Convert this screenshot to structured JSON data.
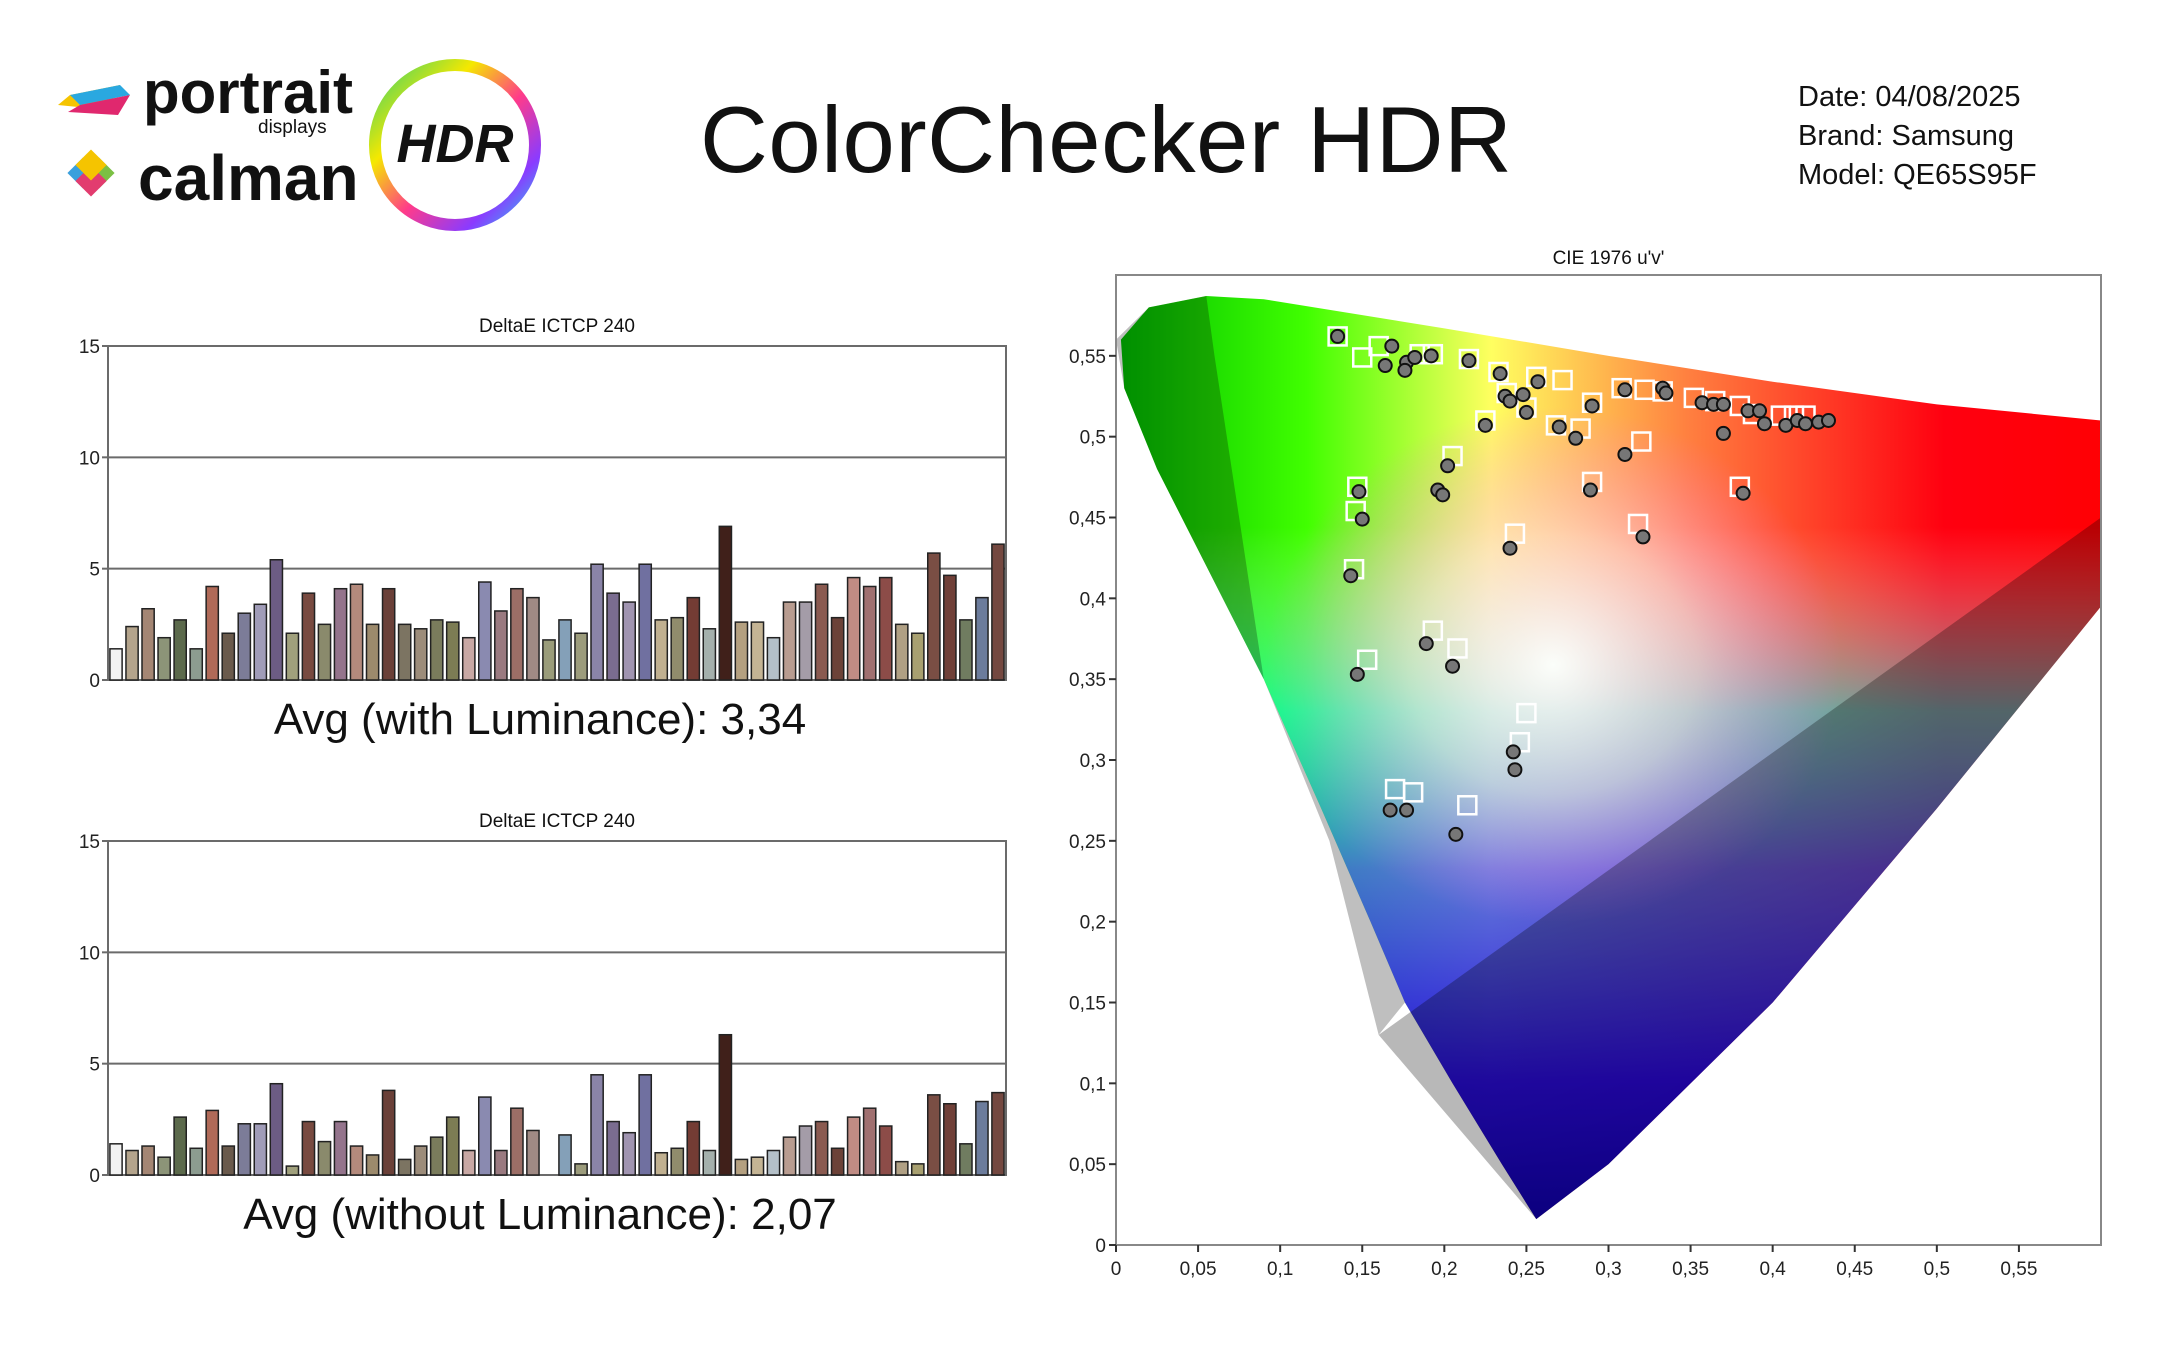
{
  "brand_logo": {
    "line1": "portrait",
    "line1_sub": "displays",
    "line2": "calman",
    "badge": "HDR"
  },
  "title": "ColorChecker HDR",
  "meta": {
    "date": "Date: 04/08/2025",
    "brand": "Brand: Samsung",
    "model": "Model: QE65S95F"
  },
  "avg_with": "Avg (with Luminance): 3,34",
  "avg_without": "Avg (without Luminance): 2,07",
  "chart_data": [
    {
      "type": "bar",
      "title": "DeltaE ICTCP 240",
      "ylim": [
        0,
        15
      ],
      "yticks": [
        "0",
        "5",
        "10",
        "15"
      ],
      "grid": true,
      "values": [
        1.4,
        2.4,
        3.2,
        1.9,
        2.7,
        1.4,
        4.2,
        2.1,
        3.0,
        3.4,
        5.4,
        2.1,
        3.9,
        2.5,
        4.1,
        4.3,
        2.5,
        4.1,
        2.5,
        2.3,
        2.7,
        2.6,
        1.9,
        4.4,
        3.1,
        4.1,
        3.7,
        1.8,
        2.7,
        2.1,
        5.2,
        3.9,
        3.5,
        5.2,
        2.7,
        2.8,
        3.7,
        2.3,
        6.9,
        2.6,
        2.6,
        1.9,
        3.5,
        3.5,
        4.3,
        2.8,
        4.6,
        4.2,
        4.6,
        2.5,
        2.1,
        5.7,
        4.7,
        2.7,
        3.7,
        6.1
      ],
      "bar_colors": [
        "#f2f2f2",
        "#b4a48c",
        "#a48674",
        "#8c9478",
        "#5c6a4c",
        "#8c9c90",
        "#b06a58",
        "#6a5a4c",
        "#7c7c98",
        "#a09cb8",
        "#6c5c84",
        "#a0a07c",
        "#784a40",
        "#8a8a6c",
        "#94748c",
        "#b48a7c",
        "#9c8a6c",
        "#6a4038",
        "#7c7462",
        "#9c8c7a",
        "#7a7c5c",
        "#7c7c54",
        "#c8a8a4",
        "#8a8ab0",
        "#9a7a80",
        "#9c6e66",
        "#a08a84",
        "#9a9c7a",
        "#84a0b8",
        "#9c9c7c",
        "#8a84a8",
        "#7a6c90",
        "#a094b0",
        "#7070a0",
        "#c0b090",
        "#908c6c",
        "#743c34",
        "#a4b0ac",
        "#40201a",
        "#b4a080",
        "#c4b494",
        "#b4c0c8",
        "#b89c90",
        "#a49ca8",
        "#8a5a50",
        "#6c4238",
        "#c08c84",
        "#a07070",
        "#8c4c48",
        "#b0a084",
        "#a8a070",
        "#7a4e44",
        "#704038",
        "#707c60",
        "#6c7c9c",
        "#744840"
      ]
    },
    {
      "type": "bar",
      "title": "DeltaE ICTCP 240",
      "ylim": [
        0,
        15
      ],
      "yticks": [
        "0",
        "5",
        "10",
        "15"
      ],
      "grid": true,
      "values": [
        1.4,
        1.1,
        1.3,
        0.8,
        2.6,
        1.2,
        2.9,
        1.3,
        2.3,
        2.3,
        4.1,
        0.4,
        2.4,
        1.5,
        2.4,
        1.3,
        0.9,
        3.8,
        0.7,
        1.3,
        1.7,
        2.6,
        1.1,
        3.5,
        1.1,
        3.0,
        2.0,
        0.0,
        1.8,
        0.5,
        4.5,
        2.4,
        1.9,
        4.5,
        1.0,
        1.2,
        2.4,
        1.1,
        6.3,
        0.7,
        0.8,
        1.1,
        1.7,
        2.2,
        2.4,
        1.2,
        2.6,
        3.0,
        2.2,
        0.6,
        0.5,
        3.6,
        3.2,
        1.4,
        3.3,
        3.7
      ],
      "bar_colors": [
        "#f2f2f2",
        "#b4a48c",
        "#a48674",
        "#8c9478",
        "#5c6a4c",
        "#8c9c90",
        "#b06a58",
        "#6a5a4c",
        "#7c7c98",
        "#a09cb8",
        "#6c5c84",
        "#a0a07c",
        "#784a40",
        "#8a8a6c",
        "#94748c",
        "#b48a7c",
        "#9c8a6c",
        "#6a4038",
        "#7c7462",
        "#9c8c7a",
        "#7a7c5c",
        "#7c7c54",
        "#c8a8a4",
        "#8a8ab0",
        "#9a7a80",
        "#9c6e66",
        "#a08a84",
        "#9a9c7a",
        "#84a0b8",
        "#9c9c7c",
        "#8a84a8",
        "#7a6c90",
        "#a094b0",
        "#7070a0",
        "#c0b090",
        "#908c6c",
        "#743c34",
        "#a4b0ac",
        "#40201a",
        "#b4a080",
        "#c4b494",
        "#b4c0c8",
        "#b89c90",
        "#a49ca8",
        "#8a5a50",
        "#6c4238",
        "#c08c84",
        "#a07070",
        "#8c4c48",
        "#b0a084",
        "#a8a070",
        "#7a4e44",
        "#704038",
        "#707c60",
        "#6c7c9c",
        "#744840"
      ]
    },
    {
      "type": "scatter",
      "title": "CIE 1976 u'v'",
      "xlim": [
        0,
        0.6
      ],
      "ylim": [
        0,
        0.6
      ],
      "xticks": [
        "0",
        "0,05",
        "0,1",
        "0,15",
        "0,2",
        "0,25",
        "0,3",
        "0,35",
        "0,4",
        "0,45",
        "0,5",
        "0,55"
      ],
      "yticks": [
        "0",
        "0,05",
        "0,1",
        "0,15",
        "0,2",
        "0,25",
        "0,3",
        "0,35",
        "0,4",
        "0,45",
        "0,5",
        "0,55"
      ],
      "series": [
        {
          "marker": "square-outline",
          "points": [
            [
              0.135,
              0.562
            ],
            [
              0.15,
              0.549
            ],
            [
              0.16,
              0.556
            ],
            [
              0.185,
              0.551
            ],
            [
              0.193,
              0.551
            ],
            [
              0.215,
              0.548
            ],
            [
              0.233,
              0.54
            ],
            [
              0.238,
              0.527
            ],
            [
              0.256,
              0.537
            ],
            [
              0.272,
              0.535
            ],
            [
              0.25,
              0.518
            ],
            [
              0.225,
              0.51
            ],
            [
              0.268,
              0.507
            ],
            [
              0.283,
              0.505
            ],
            [
              0.29,
              0.521
            ],
            [
              0.308,
              0.53
            ],
            [
              0.322,
              0.529
            ],
            [
              0.333,
              0.528
            ],
            [
              0.352,
              0.524
            ],
            [
              0.365,
              0.522
            ],
            [
              0.38,
              0.519
            ],
            [
              0.388,
              0.514
            ],
            [
              0.405,
              0.513
            ],
            [
              0.413,
              0.513
            ],
            [
              0.42,
              0.513
            ],
            [
              0.32,
              0.497
            ],
            [
              0.29,
              0.472
            ],
            [
              0.38,
              0.469
            ],
            [
              0.205,
              0.488
            ],
            [
              0.147,
              0.469
            ],
            [
              0.146,
              0.454
            ],
            [
              0.145,
              0.418
            ],
            [
              0.153,
              0.362
            ],
            [
              0.193,
              0.38
            ],
            [
              0.208,
              0.369
            ],
            [
              0.243,
              0.44
            ],
            [
              0.318,
              0.446
            ],
            [
              0.25,
              0.329
            ],
            [
              0.246,
              0.311
            ],
            [
              0.17,
              0.282
            ],
            [
              0.181,
              0.28
            ],
            [
              0.214,
              0.272
            ]
          ]
        },
        {
          "marker": "circle-filled",
          "points": [
            [
              0.135,
              0.562
            ],
            [
              0.164,
              0.544
            ],
            [
              0.168,
              0.556
            ],
            [
              0.177,
              0.546
            ],
            [
              0.176,
              0.541
            ],
            [
              0.182,
              0.549
            ],
            [
              0.192,
              0.55
            ],
            [
              0.215,
              0.547
            ],
            [
              0.234,
              0.539
            ],
            [
              0.237,
              0.525
            ],
            [
              0.24,
              0.522
            ],
            [
              0.248,
              0.526
            ],
            [
              0.257,
              0.534
            ],
            [
              0.25,
              0.515
            ],
            [
              0.225,
              0.507
            ],
            [
              0.27,
              0.506
            ],
            [
              0.28,
              0.499
            ],
            [
              0.29,
              0.519
            ],
            [
              0.31,
              0.529
            ],
            [
              0.333,
              0.53
            ],
            [
              0.335,
              0.527
            ],
            [
              0.357,
              0.521
            ],
            [
              0.364,
              0.52
            ],
            [
              0.37,
              0.52
            ],
            [
              0.385,
              0.516
            ],
            [
              0.392,
              0.516
            ],
            [
              0.395,
              0.508
            ],
            [
              0.408,
              0.507
            ],
            [
              0.415,
              0.51
            ],
            [
              0.42,
              0.508
            ],
            [
              0.428,
              0.509
            ],
            [
              0.434,
              0.51
            ],
            [
              0.37,
              0.502
            ],
            [
              0.31,
              0.489
            ],
            [
              0.202,
              0.482
            ],
            [
              0.196,
              0.467
            ],
            [
              0.199,
              0.464
            ],
            [
              0.289,
              0.467
            ],
            [
              0.382,
              0.465
            ],
            [
              0.148,
              0.466
            ],
            [
              0.15,
              0.449
            ],
            [
              0.143,
              0.414
            ],
            [
              0.24,
              0.431
            ],
            [
              0.321,
              0.438
            ],
            [
              0.189,
              0.372
            ],
            [
              0.205,
              0.358
            ],
            [
              0.147,
              0.353
            ],
            [
              0.242,
              0.305
            ],
            [
              0.243,
              0.294
            ],
            [
              0.167,
              0.269
            ],
            [
              0.177,
              0.269
            ],
            [
              0.207,
              0.254
            ]
          ]
        }
      ]
    }
  ],
  "colors": {
    "grid": "#6b6b6b",
    "axis": "#333333",
    "square_marker": "#ffffff",
    "circle_fill": "#777777",
    "circle_stroke": "#111111"
  }
}
